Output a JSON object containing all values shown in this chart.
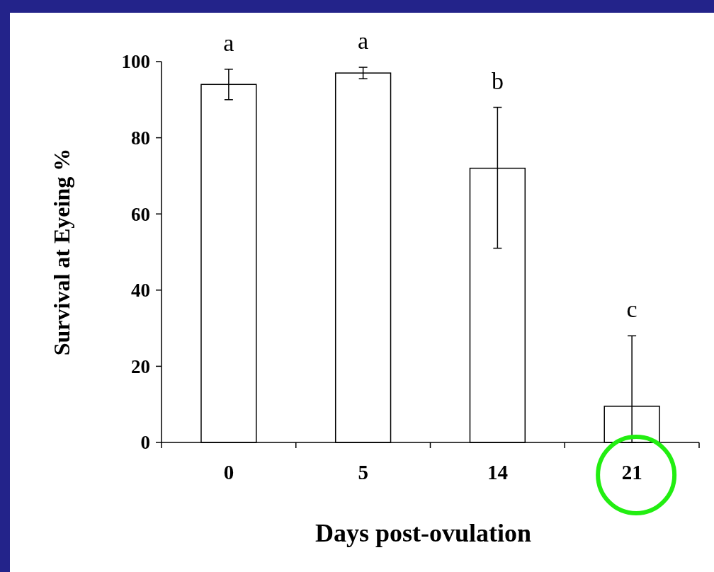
{
  "chart_data": {
    "type": "bar",
    "xlabel": "Days post-ovulation",
    "ylabel": "Survival at Eyeing %",
    "categories": [
      "0",
      "5",
      "14",
      "21"
    ],
    "values": [
      94,
      97,
      72,
      9.5
    ],
    "errors": [
      [
        90,
        98
      ],
      [
        95.5,
        98.5
      ],
      [
        51,
        88
      ],
      [
        0,
        28
      ]
    ],
    "color": "#ffffff",
    "ylim": [
      0,
      100
    ],
    "yticks": [
      0,
      20,
      40,
      60,
      80,
      100
    ],
    "grid": false,
    "annotations": [
      {
        "text": "a",
        "x": "0",
        "y": 98
      },
      {
        "text": "a",
        "x": "5",
        "y": 98.5
      },
      {
        "text": "b",
        "x": "14",
        "y": 88
      },
      {
        "text": "c",
        "x": "21",
        "y": 28
      }
    ]
  }
}
